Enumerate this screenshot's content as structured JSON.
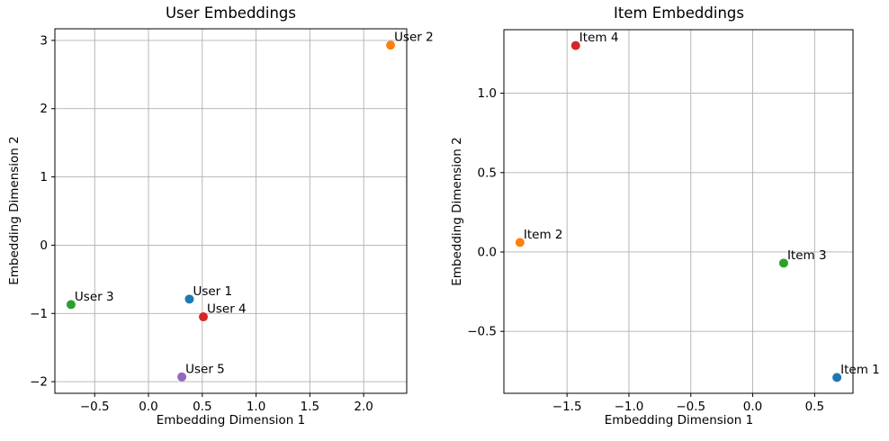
{
  "style": {
    "background": "#ffffff",
    "grid_color": "#b0b0b0",
    "spine_color": "#000000",
    "text_color": "#000000"
  },
  "chart_data": [
    {
      "type": "scatter",
      "title": "User Embeddings",
      "xlabel": "Embedding Dimension 1",
      "ylabel": "Embedding Dimension 2",
      "xlim": [
        -0.87,
        2.4
      ],
      "ylim": [
        -2.17,
        3.17
      ],
      "grid": true,
      "legend": "none",
      "xticks": [
        -0.5,
        0.0,
        0.5,
        1.0,
        1.5,
        2.0
      ],
      "xtick_labels": [
        "−0.5",
        "0.0",
        "0.5",
        "1.0",
        "1.5",
        "2.0"
      ],
      "yticks": [
        -2,
        -1,
        0,
        1,
        2,
        3
      ],
      "ytick_labels": [
        "−2",
        "−1",
        "0",
        "1",
        "2",
        "3"
      ],
      "points": [
        {
          "label": "User 1",
          "x": 0.38,
          "y": -0.79,
          "color": "#1f77b4"
        },
        {
          "label": "User 2",
          "x": 2.25,
          "y": 2.93,
          "color": "#ff7f0e"
        },
        {
          "label": "User 3",
          "x": -0.72,
          "y": -0.87,
          "color": "#2ca02c"
        },
        {
          "label": "User 4",
          "x": 0.51,
          "y": -1.05,
          "color": "#d62728"
        },
        {
          "label": "User 5",
          "x": 0.31,
          "y": -1.93,
          "color": "#9467bd"
        }
      ]
    },
    {
      "type": "scatter",
      "title": "Item Embeddings",
      "xlabel": "Embedding Dimension 1",
      "ylabel": "Embedding Dimension 2",
      "xlim": [
        -2.01,
        0.81
      ],
      "ylim": [
        -0.89,
        1.4
      ],
      "grid": true,
      "legend": "none",
      "xticks": [
        -1.5,
        -1.0,
        -0.5,
        0.0,
        0.5
      ],
      "xtick_labels": [
        "−1.5",
        "−1.0",
        "−0.5",
        "0.0",
        "0.5"
      ],
      "yticks": [
        -0.5,
        0.0,
        0.5,
        1.0
      ],
      "ytick_labels": [
        "−0.5",
        "0.0",
        "0.5",
        "1.0"
      ],
      "points": [
        {
          "label": "Item 1",
          "x": 0.68,
          "y": -0.79,
          "color": "#1f77b4"
        },
        {
          "label": "Item 2",
          "x": -1.88,
          "y": 0.06,
          "color": "#ff7f0e"
        },
        {
          "label": "Item 3",
          "x": 0.25,
          "y": -0.07,
          "color": "#2ca02c"
        },
        {
          "label": "Item 4",
          "x": -1.43,
          "y": 1.3,
          "color": "#d62728"
        }
      ]
    }
  ]
}
